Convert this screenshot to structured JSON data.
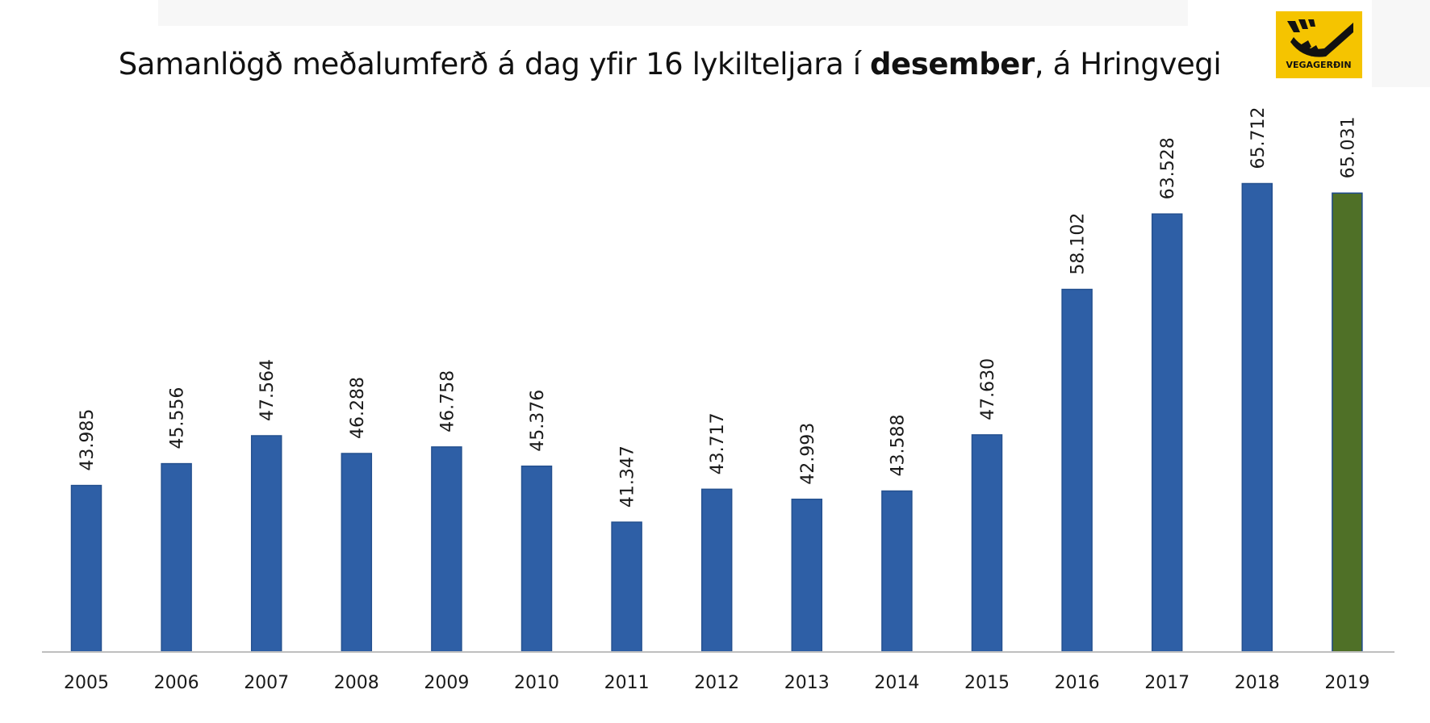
{
  "title": {
    "before": "Samanlögð meðalumferð á dag yfir 16 lykilteljara í ",
    "bold": "desember",
    "after": ", á Hringvegi"
  },
  "logo": {
    "text": "VEGAGERÐIN",
    "color": "#f5c400"
  },
  "chart_data": {
    "type": "bar",
    "title": "Samanlögð meðalumferð á dag yfir 16 lykilteljara í desember, á Hringvegi",
    "xlabel": "",
    "ylabel": "",
    "categories": [
      "2005",
      "2006",
      "2007",
      "2008",
      "2009",
      "2010",
      "2011",
      "2012",
      "2013",
      "2014",
      "2015",
      "2016",
      "2017",
      "2018",
      "2019"
    ],
    "values": [
      43985,
      45556,
      47564,
      46288,
      46758,
      45376,
      41347,
      43717,
      42993,
      43588,
      47630,
      58102,
      63528,
      65712,
      65031
    ],
    "value_labels": [
      "43.985",
      "45.556",
      "47.564",
      "46.288",
      "46.758",
      "45.376",
      "41.347",
      "43.717",
      "42.993",
      "43.588",
      "47.630",
      "58.102",
      "63.528",
      "65.712",
      "65.031"
    ],
    "ylim": [
      32000,
      67000
    ],
    "grid": false,
    "legend": "none",
    "bar_colors": [
      "#2e5fa6",
      "#2e5fa6",
      "#2e5fa6",
      "#2e5fa6",
      "#2e5fa6",
      "#2e5fa6",
      "#2e5fa6",
      "#2e5fa6",
      "#2e5fa6",
      "#2e5fa6",
      "#2e5fa6",
      "#2e5fa6",
      "#2e5fa6",
      "#2e5fa6",
      "#4f7027"
    ],
    "bar_edge_colors": [
      "#24508f",
      "#24508f",
      "#24508f",
      "#24508f",
      "#24508f",
      "#24508f",
      "#24508f",
      "#24508f",
      "#24508f",
      "#24508f",
      "#24508f",
      "#24508f",
      "#24508f",
      "#24508f",
      "#1e4a8c"
    ],
    "axis_color": "#bfbfbf"
  }
}
